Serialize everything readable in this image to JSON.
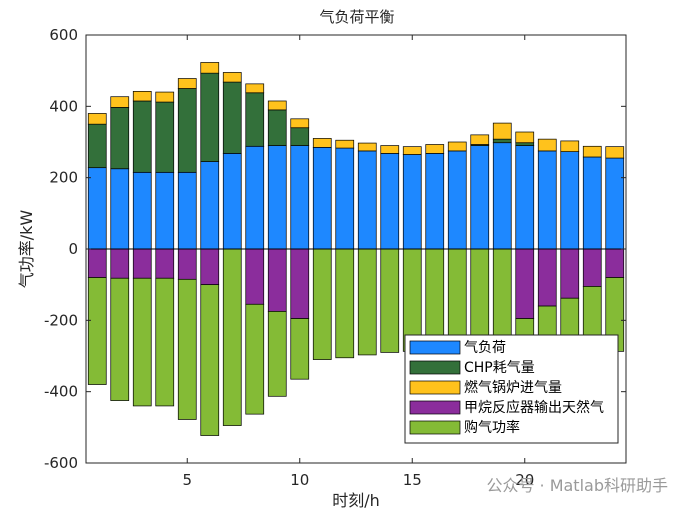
{
  "chart_data": {
    "type": "bar",
    "stacked": true,
    "title": "气负荷平衡",
    "xlabel": "时刻/h",
    "ylabel": "气功率/kW",
    "xlim": [
      0.5,
      24.5
    ],
    "ylim": [
      -600,
      600
    ],
    "x_ticks": [
      5,
      10,
      15,
      20
    ],
    "y_ticks": [
      -600,
      -400,
      -200,
      0,
      200,
      400,
      600
    ],
    "categories": [
      1,
      2,
      3,
      4,
      5,
      6,
      7,
      8,
      9,
      10,
      11,
      12,
      13,
      14,
      15,
      16,
      17,
      18,
      19,
      20,
      21,
      22,
      23,
      24
    ],
    "grid": false,
    "legend_position": "bottom-right",
    "series": [
      {
        "name": "气负荷",
        "color": "#1e88ff",
        "values": [
          228,
          225,
          215,
          215,
          215,
          245,
          268,
          288,
          290,
          290,
          285,
          283,
          275,
          268,
          265,
          268,
          275,
          290,
          298,
          290,
          275,
          273,
          258,
          255
        ]
      },
      {
        "name": "CHP耗气量",
        "color": "#33703a",
        "values": [
          122,
          172,
          200,
          197,
          235,
          248,
          200,
          150,
          100,
          50,
          0,
          0,
          0,
          0,
          0,
          0,
          0,
          3,
          10,
          8,
          0,
          0,
          0,
          0
        ]
      },
      {
        "name": "燃气锅炉进气量",
        "color": "#ffc21c",
        "values": [
          30,
          30,
          27,
          28,
          28,
          30,
          27,
          25,
          25,
          25,
          25,
          22,
          22,
          22,
          22,
          25,
          25,
          27,
          45,
          30,
          33,
          30,
          30,
          32
        ]
      },
      {
        "name": "甲烷反应器输出天然气",
        "color": "#8b2d9c",
        "values": [
          -80,
          -82,
          -82,
          -82,
          -85,
          -100,
          0,
          -155,
          -175,
          -195,
          0,
          0,
          0,
          0,
          0,
          0,
          0,
          0,
          0,
          -195,
          -160,
          -138,
          -105,
          -80
        ]
      },
      {
        "name": "购气功率",
        "color": "#84bb36",
        "values": [
          -300,
          -343,
          -358,
          -358,
          -393,
          -423,
          -495,
          -308,
          -238,
          -170,
          -310,
          -305,
          -297,
          -290,
          -287,
          -293,
          -300,
          -320,
          -353,
          -133,
          -148,
          -165,
          -183,
          -207
        ]
      }
    ]
  },
  "watermark": {
    "text": "公众号 · Matlab科研助手"
  }
}
